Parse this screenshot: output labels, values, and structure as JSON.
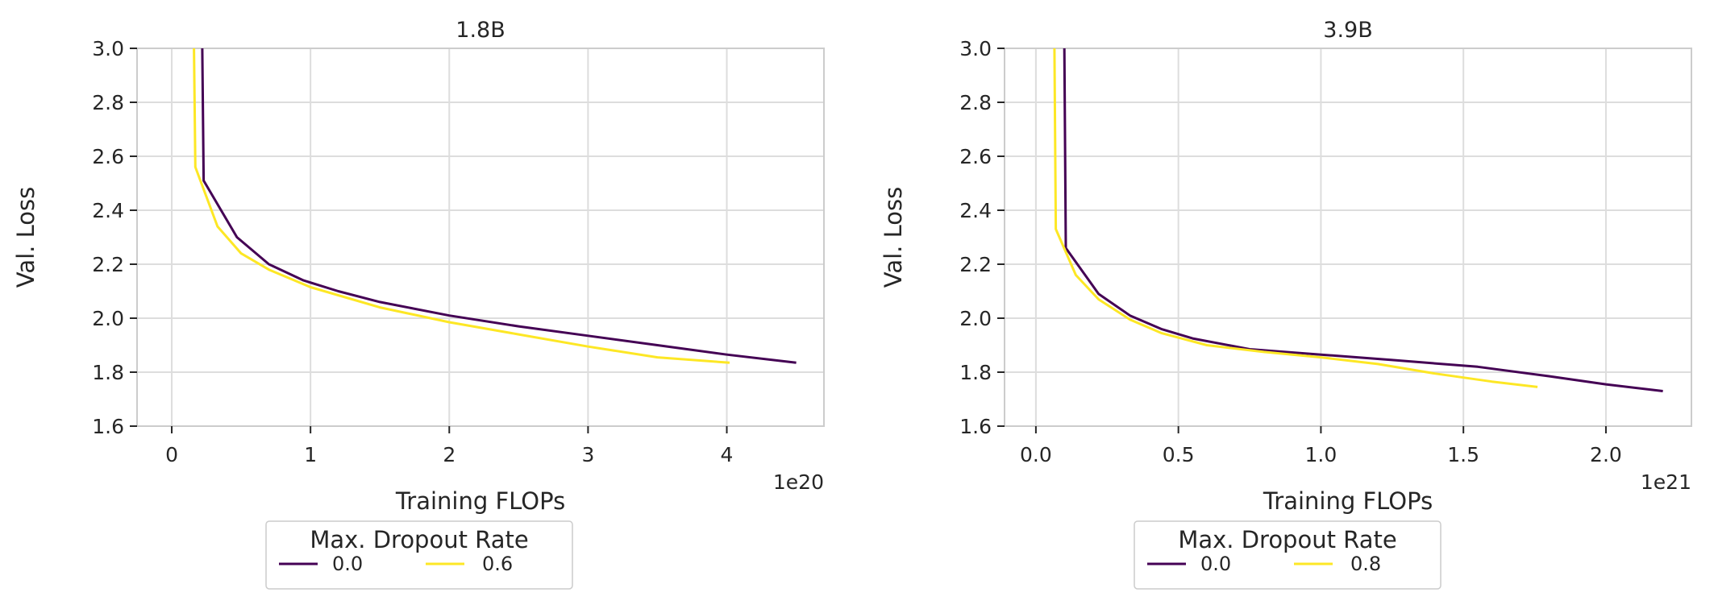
{
  "chart_data": [
    {
      "type": "line",
      "title": "1.8B",
      "xlabel": "Training FLOPs",
      "ylabel": "Val. Loss",
      "x_offset_label": "1e20",
      "xlim": [
        -0.25,
        4.7
      ],
      "ylim": [
        1.6,
        3.0
      ],
      "xticks": [
        0,
        1,
        2,
        3,
        4
      ],
      "xtick_labels": [
        "0",
        "1",
        "2",
        "3",
        "4"
      ],
      "yticks": [
        1.6,
        1.8,
        2.0,
        2.2,
        2.4,
        2.6,
        2.8,
        3.0
      ],
      "ytick_labels": [
        "1.6",
        "1.8",
        "2.0",
        "2.2",
        "2.4",
        "2.6",
        "2.8",
        "3.0"
      ],
      "grid": true,
      "legend": {
        "title": "Max. Dropout Rate",
        "placement": "below",
        "entries": [
          "0.0",
          "0.6"
        ]
      },
      "series": [
        {
          "name": "0.0",
          "color": "#440154",
          "x": [
            0.22,
            0.23,
            0.47,
            0.7,
            0.95,
            1.2,
            1.5,
            2.0,
            2.5,
            3.0,
            3.5,
            4.0,
            4.5
          ],
          "y": [
            3.0,
            2.51,
            2.3,
            2.2,
            2.14,
            2.1,
            2.06,
            2.01,
            1.97,
            1.935,
            1.9,
            1.865,
            1.835
          ]
        },
        {
          "name": "0.6",
          "color": "#fde725",
          "x": [
            0.16,
            0.17,
            0.33,
            0.5,
            0.7,
            1.0,
            1.5,
            2.0,
            2.5,
            3.0,
            3.5,
            4.02
          ],
          "y": [
            3.0,
            2.56,
            2.34,
            2.24,
            2.18,
            2.115,
            2.04,
            1.985,
            1.94,
            1.895,
            1.855,
            1.835
          ]
        }
      ]
    },
    {
      "type": "line",
      "title": "3.9B",
      "xlabel": "Training FLOPs",
      "ylabel": "Val. Loss",
      "x_offset_label": "1e21",
      "xlim": [
        -0.11,
        2.3
      ],
      "ylim": [
        1.6,
        3.0
      ],
      "xticks": [
        0.0,
        0.5,
        1.0,
        1.5,
        2.0
      ],
      "xtick_labels": [
        "0.0",
        "0.5",
        "1.0",
        "1.5",
        "2.0"
      ],
      "yticks": [
        1.6,
        1.8,
        2.0,
        2.2,
        2.4,
        2.6,
        2.8,
        3.0
      ],
      "ytick_labels": [
        "1.6",
        "1.8",
        "2.0",
        "2.2",
        "2.4",
        "2.6",
        "2.8",
        "3.0"
      ],
      "grid": true,
      "legend": {
        "title": "Max. Dropout Rate",
        "placement": "below",
        "entries": [
          "0.0",
          "0.8"
        ]
      },
      "series": [
        {
          "name": "0.0",
          "color": "#440154",
          "x": [
            0.1,
            0.105,
            0.22,
            0.33,
            0.44,
            0.55,
            0.75,
            1.0,
            1.25,
            1.55,
            1.8,
            2.0,
            2.2
          ],
          "y": [
            3.0,
            2.26,
            2.09,
            2.01,
            1.96,
            1.925,
            1.885,
            1.865,
            1.845,
            1.82,
            1.785,
            1.755,
            1.73
          ]
        },
        {
          "name": "0.8",
          "color": "#fde725",
          "x": [
            0.065,
            0.07,
            0.14,
            0.22,
            0.33,
            0.44,
            0.6,
            0.8,
            1.0,
            1.2,
            1.4,
            1.6,
            1.76
          ],
          "y": [
            3.0,
            2.33,
            2.16,
            2.07,
            1.995,
            1.945,
            1.9,
            1.875,
            1.855,
            1.83,
            1.795,
            1.765,
            1.745
          ]
        }
      ]
    }
  ]
}
